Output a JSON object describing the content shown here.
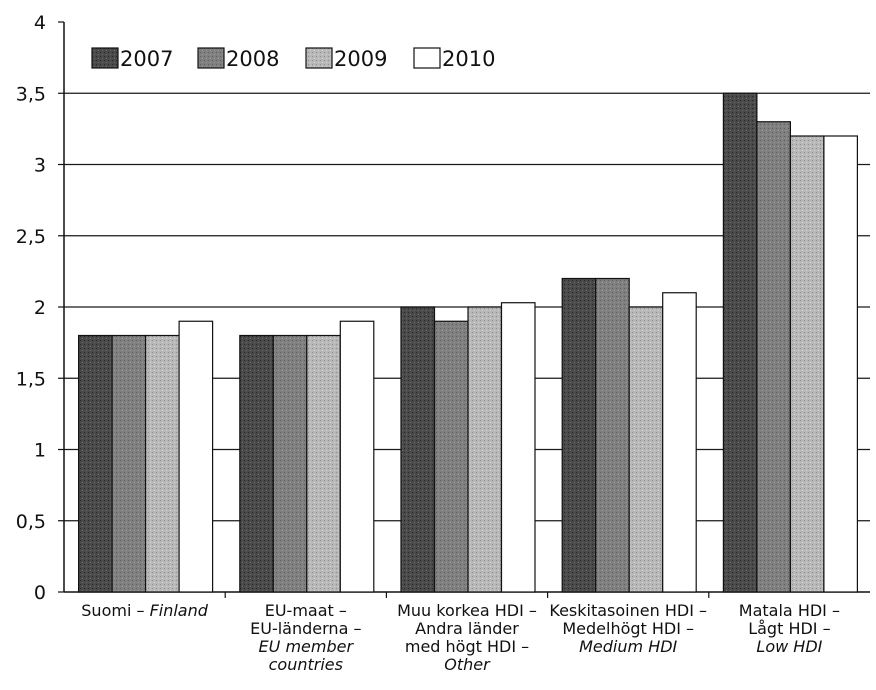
{
  "chart_data": {
    "type": "bar",
    "categories": [
      {
        "lines": [
          {
            "text": "Suomi – ",
            "italic": false,
            "join": "Finland"
          }
        ]
      },
      {
        "lines": [
          {
            "text": "EU-maat –"
          },
          {
            "text": "EU-länderna –"
          },
          {
            "text": "EU member",
            "italic": true
          },
          {
            "text": "countries",
            "italic": true
          }
        ]
      },
      {
        "lines": [
          {
            "text": "Muu korkea HDI –"
          },
          {
            "text": "Andra länder"
          },
          {
            "text": "med högt HDI –"
          },
          {
            "text": "Other",
            "italic": true
          }
        ]
      },
      {
        "lines": [
          {
            "text": "Keskitasoinen HDI –"
          },
          {
            "text": "Medelhögt HDI –"
          },
          {
            "text": "Medium HDI",
            "italic": true
          }
        ]
      },
      {
        "lines": [
          {
            "text": "Matala HDI –"
          },
          {
            "text": "Lågt HDI –"
          },
          {
            "text": "Low HDI",
            "italic": true
          }
        ]
      }
    ],
    "series": [
      {
        "name": "2007",
        "values": [
          1.8,
          1.8,
          2.0,
          2.2,
          3.5
        ],
        "color": "#4a4a4a"
      },
      {
        "name": "2008",
        "values": [
          1.8,
          1.8,
          1.9,
          2.2,
          3.3
        ],
        "color": "#7d7d7d"
      },
      {
        "name": "2009",
        "values": [
          1.8,
          1.8,
          2.0,
          2.0,
          3.2
        ],
        "color": "#b4b4b4"
      },
      {
        "name": "2010",
        "values": [
          1.9,
          1.9,
          2.03,
          2.1,
          3.2
        ],
        "color": "#ffffff"
      }
    ],
    "y_ticks": [
      "0",
      "0,5",
      "1",
      "1,5",
      "2",
      "2,5",
      "3",
      "3,5",
      "4"
    ],
    "ylim": [
      0,
      4
    ],
    "grid": true,
    "legend_position": "top-left",
    "title": "",
    "xlabel": "",
    "ylabel": ""
  }
}
